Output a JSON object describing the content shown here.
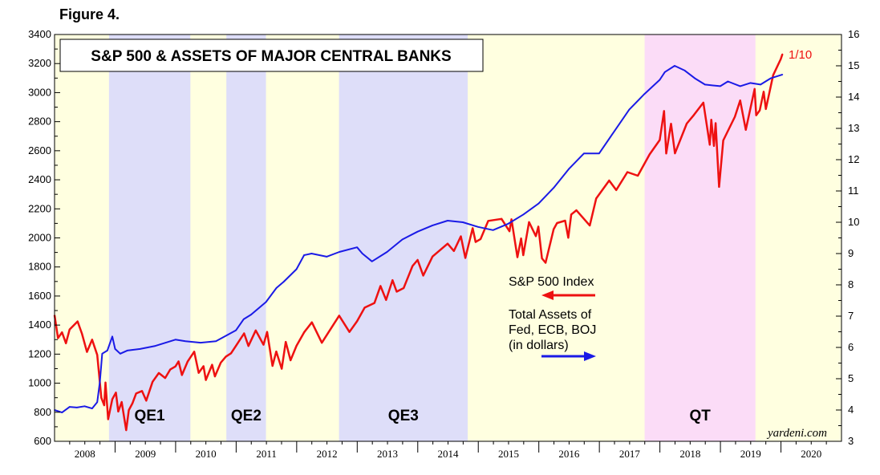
{
  "figure_label": "Figure 4.",
  "chart_data": {
    "type": "line",
    "title": "S&P 500 & ASSETS OF MAJOR CENTRAL BANKS",
    "credit": "yardeni.com",
    "end_label": "1/10",
    "xlabel": "",
    "ylabel_left": "",
    "ylabel_right": "",
    "x_range": [
      "2008-01-01",
      "2020-12-31"
    ],
    "x_tick_labels": [
      "2008",
      "2009",
      "2010",
      "2011",
      "2012",
      "2013",
      "2014",
      "2015",
      "2016",
      "2017",
      "2018",
      "2019",
      "2020"
    ],
    "ylim_left": [
      600,
      3400
    ],
    "ylim_right": [
      3,
      16
    ],
    "y_tick_labels_left": [
      "600",
      "800",
      "1000",
      "1200",
      "1400",
      "1600",
      "1800",
      "2000",
      "2200",
      "2400",
      "2600",
      "2800",
      "3000",
      "3200",
      "3400"
    ],
    "y_tick_labels_right": [
      "3",
      "4",
      "5",
      "6",
      "7",
      "8",
      "9",
      "10",
      "11",
      "12",
      "13",
      "14",
      "15",
      "16"
    ],
    "grid": false,
    "colors": {
      "background_band": "#ffffe0",
      "qe_band": "#dedef9",
      "qt_band": "#fbdcf7",
      "sp500": "#ee1111",
      "assets": "#1a1ae6"
    },
    "bands": [
      {
        "label": "QE1",
        "start": "2008-11-25",
        "end": "2010-03-31",
        "kind": "qe"
      },
      {
        "label": "QE2",
        "start": "2010-11-03",
        "end": "2011-06-30",
        "kind": "qe"
      },
      {
        "label": "QE3",
        "start": "2012-09-13",
        "end": "2014-10-29",
        "kind": "qe"
      },
      {
        "label": "QT",
        "start": "2017-10-01",
        "end": "2019-07-31",
        "kind": "qt"
      }
    ],
    "legend": [
      {
        "text": "S&P 500 Index",
        "axis": "left",
        "arrow": "left"
      },
      {
        "lines": [
          "Total Assets of",
          "Fed, ECB, BOJ",
          "(in dollars)"
        ],
        "axis": "right",
        "arrow": "right"
      }
    ],
    "series": [
      {
        "name": "S&P 500 Index",
        "axis": "left",
        "points": [
          [
            "2008-01-01",
            1468
          ],
          [
            "2008-01-22",
            1310
          ],
          [
            "2008-02-15",
            1350
          ],
          [
            "2008-03-10",
            1275
          ],
          [
            "2008-04-01",
            1370
          ],
          [
            "2008-05-19",
            1425
          ],
          [
            "2008-06-15",
            1340
          ],
          [
            "2008-07-15",
            1215
          ],
          [
            "2008-08-15",
            1300
          ],
          [
            "2008-09-15",
            1195
          ],
          [
            "2008-10-10",
            900
          ],
          [
            "2008-10-27",
            848
          ],
          [
            "2008-11-04",
            1005
          ],
          [
            "2008-11-20",
            752
          ],
          [
            "2008-12-15",
            890
          ],
          [
            "2009-01-06",
            935
          ],
          [
            "2009-01-20",
            805
          ],
          [
            "2009-02-10",
            870
          ],
          [
            "2009-03-09",
            677
          ],
          [
            "2009-03-25",
            815
          ],
          [
            "2009-04-15",
            860
          ],
          [
            "2009-05-08",
            929
          ],
          [
            "2009-06-12",
            946
          ],
          [
            "2009-07-08",
            880
          ],
          [
            "2009-08-15",
            1010
          ],
          [
            "2009-09-22",
            1070
          ],
          [
            "2009-10-30",
            1036
          ],
          [
            "2009-11-30",
            1095
          ],
          [
            "2009-12-31",
            1115
          ],
          [
            "2010-01-19",
            1150
          ],
          [
            "2010-02-08",
            1056
          ],
          [
            "2010-03-15",
            1150
          ],
          [
            "2010-04-23",
            1217
          ],
          [
            "2010-05-20",
            1071
          ],
          [
            "2010-06-18",
            1117
          ],
          [
            "2010-07-02",
            1022
          ],
          [
            "2010-08-09",
            1127
          ],
          [
            "2010-08-26",
            1047
          ],
          [
            "2010-09-30",
            1141
          ],
          [
            "2010-10-31",
            1183
          ],
          [
            "2010-12-01",
            1206
          ],
          [
            "2010-12-31",
            1258
          ],
          [
            "2011-02-18",
            1343
          ],
          [
            "2011-03-16",
            1256
          ],
          [
            "2011-04-29",
            1363
          ],
          [
            "2011-06-15",
            1265
          ],
          [
            "2011-07-07",
            1353
          ],
          [
            "2011-08-08",
            1119
          ],
          [
            "2011-08-31",
            1218
          ],
          [
            "2011-10-03",
            1099
          ],
          [
            "2011-10-27",
            1284
          ],
          [
            "2011-11-25",
            1158
          ],
          [
            "2011-12-31",
            1257
          ],
          [
            "2012-02-15",
            1350
          ],
          [
            "2012-04-02",
            1419
          ],
          [
            "2012-06-01",
            1278
          ],
          [
            "2012-07-15",
            1357
          ],
          [
            "2012-09-14",
            1465
          ],
          [
            "2012-11-15",
            1353
          ],
          [
            "2012-12-31",
            1426
          ],
          [
            "2013-02-15",
            1520
          ],
          [
            "2013-04-15",
            1552
          ],
          [
            "2013-05-21",
            1669
          ],
          [
            "2013-06-24",
            1573
          ],
          [
            "2013-08-02",
            1709
          ],
          [
            "2013-08-27",
            1630
          ],
          [
            "2013-10-08",
            1655
          ],
          [
            "2013-11-30",
            1806
          ],
          [
            "2013-12-31",
            1848
          ],
          [
            "2014-02-03",
            1741
          ],
          [
            "2014-03-31",
            1872
          ],
          [
            "2014-06-30",
            1960
          ],
          [
            "2014-08-07",
            1910
          ],
          [
            "2014-09-18",
            2011
          ],
          [
            "2014-10-15",
            1862
          ],
          [
            "2014-11-28",
            2067
          ],
          [
            "2014-12-16",
            1972
          ],
          [
            "2015-01-15",
            1992
          ],
          [
            "2015-03-02",
            2117
          ],
          [
            "2015-05-21",
            2131
          ],
          [
            "2015-07-08",
            2046
          ],
          [
            "2015-07-20",
            2128
          ],
          [
            "2015-08-25",
            1867
          ],
          [
            "2015-09-16",
            1996
          ],
          [
            "2015-09-29",
            1881
          ],
          [
            "2015-11-03",
            2109
          ],
          [
            "2015-12-14",
            2012
          ],
          [
            "2015-12-29",
            2078
          ],
          [
            "2016-01-20",
            1859
          ],
          [
            "2016-02-11",
            1829
          ],
          [
            "2016-03-31",
            2060
          ],
          [
            "2016-04-20",
            2102
          ],
          [
            "2016-06-08",
            2119
          ],
          [
            "2016-06-27",
            2001
          ],
          [
            "2016-07-15",
            2161
          ],
          [
            "2016-08-15",
            2190
          ],
          [
            "2016-11-04",
            2085
          ],
          [
            "2016-12-13",
            2271
          ],
          [
            "2017-03-01",
            2395
          ],
          [
            "2017-04-13",
            2329
          ],
          [
            "2017-06-19",
            2453
          ],
          [
            "2017-08-21",
            2428
          ],
          [
            "2017-10-31",
            2575
          ],
          [
            "2017-12-31",
            2674
          ],
          [
            "2018-01-26",
            2873
          ],
          [
            "2018-02-08",
            2581
          ],
          [
            "2018-03-09",
            2786
          ],
          [
            "2018-04-02",
            2582
          ],
          [
            "2018-06-12",
            2787
          ],
          [
            "2018-07-25",
            2846
          ],
          [
            "2018-09-20",
            2931
          ],
          [
            "2018-10-29",
            2641
          ],
          [
            "2018-11-07",
            2813
          ],
          [
            "2018-11-23",
            2633
          ],
          [
            "2018-12-03",
            2790
          ],
          [
            "2018-12-24",
            2351
          ],
          [
            "2019-01-18",
            2671
          ],
          [
            "2019-03-29",
            2834
          ],
          [
            "2019-04-30",
            2946
          ],
          [
            "2019-06-03",
            2744
          ],
          [
            "2019-07-26",
            3025
          ],
          [
            "2019-08-05",
            2844
          ],
          [
            "2019-08-26",
            2878
          ],
          [
            "2019-09-19",
            3006
          ],
          [
            "2019-10-02",
            2887
          ],
          [
            "2019-11-15",
            3120
          ],
          [
            "2019-12-31",
            3231
          ],
          [
            "2020-01-10",
            3265
          ]
        ]
      },
      {
        "name": "Total Assets of Fed, ECB, BOJ (in dollars)",
        "axis": "right",
        "points": [
          [
            "2008-01-01",
            4.0
          ],
          [
            "2008-02-15",
            3.92
          ],
          [
            "2008-04-01",
            4.1
          ],
          [
            "2008-05-15",
            4.08
          ],
          [
            "2008-07-01",
            4.12
          ],
          [
            "2008-08-15",
            4.05
          ],
          [
            "2008-09-15",
            4.25
          ],
          [
            "2008-10-01",
            4.9
          ],
          [
            "2008-10-15",
            5.8
          ],
          [
            "2008-11-15",
            5.9
          ],
          [
            "2008-12-15",
            6.35
          ],
          [
            "2009-01-01",
            5.95
          ],
          [
            "2009-02-01",
            5.8
          ],
          [
            "2009-03-15",
            5.9
          ],
          [
            "2009-06-01",
            5.95
          ],
          [
            "2009-09-01",
            6.05
          ],
          [
            "2009-12-31",
            6.25
          ],
          [
            "2010-03-01",
            6.2
          ],
          [
            "2010-06-01",
            6.15
          ],
          [
            "2010-09-01",
            6.2
          ],
          [
            "2010-12-31",
            6.55
          ],
          [
            "2011-02-15",
            6.9
          ],
          [
            "2011-04-01",
            7.05
          ],
          [
            "2011-06-30",
            7.45
          ],
          [
            "2011-09-01",
            7.9
          ],
          [
            "2011-10-15",
            8.1
          ],
          [
            "2011-12-31",
            8.5
          ],
          [
            "2012-02-15",
            8.95
          ],
          [
            "2012-03-31",
            9.0
          ],
          [
            "2012-06-30",
            8.9
          ],
          [
            "2012-09-15",
            9.05
          ],
          [
            "2012-12-31",
            9.2
          ],
          [
            "2013-02-01",
            9.0
          ],
          [
            "2013-03-31",
            8.75
          ],
          [
            "2013-06-30",
            9.05
          ],
          [
            "2013-09-30",
            9.45
          ],
          [
            "2013-12-31",
            9.7
          ],
          [
            "2014-03-31",
            9.9
          ],
          [
            "2014-06-30",
            10.05
          ],
          [
            "2014-09-30",
            10.0
          ],
          [
            "2014-12-31",
            9.85
          ],
          [
            "2015-03-31",
            9.75
          ],
          [
            "2015-06-30",
            9.95
          ],
          [
            "2015-09-30",
            10.25
          ],
          [
            "2015-12-31",
            10.6
          ],
          [
            "2016-03-31",
            11.1
          ],
          [
            "2016-06-30",
            11.7
          ],
          [
            "2016-09-30",
            12.2
          ],
          [
            "2016-12-31",
            12.2
          ],
          [
            "2017-03-31",
            12.9
          ],
          [
            "2017-06-30",
            13.6
          ],
          [
            "2017-09-30",
            14.1
          ],
          [
            "2017-12-31",
            14.55
          ],
          [
            "2018-01-31",
            14.8
          ],
          [
            "2018-03-31",
            15.0
          ],
          [
            "2018-05-31",
            14.85
          ],
          [
            "2018-07-31",
            14.6
          ],
          [
            "2018-09-30",
            14.4
          ],
          [
            "2018-12-31",
            14.35
          ],
          [
            "2019-02-15",
            14.5
          ],
          [
            "2019-04-30",
            14.35
          ],
          [
            "2019-06-30",
            14.45
          ],
          [
            "2019-08-31",
            14.4
          ],
          [
            "2019-10-31",
            14.6
          ],
          [
            "2020-01-10",
            14.72
          ]
        ]
      }
    ]
  }
}
